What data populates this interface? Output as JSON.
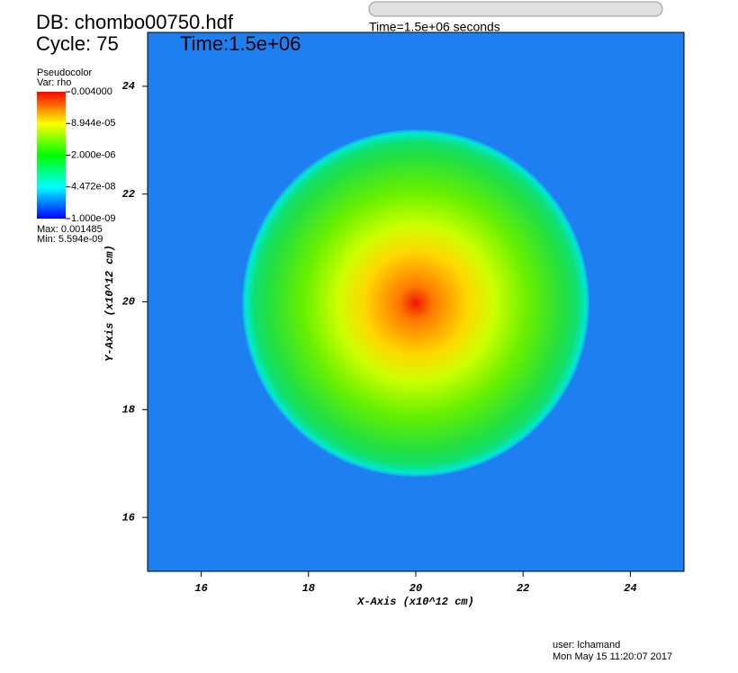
{
  "chart_data": {
    "type": "pseudocolor",
    "database": "DB: chombo00750.hdf",
    "cycle": "Cycle: 75",
    "time": "Time:1.5e+06",
    "title": "Time=1.5e+06 seconds",
    "xlabel": "X-Axis (x10^12 cm)",
    "ylabel": "Y-Axis (x10^12 cm)",
    "xlim": [
      15,
      25
    ],
    "xticks": [
      16,
      18,
      20,
      22,
      24
    ],
    "ylim": [
      15,
      25
    ],
    "yticks": [
      16,
      18,
      20,
      22,
      24
    ],
    "colorbar": {
      "title": "Pseudocolor",
      "variable": "Var: rho",
      "log": true,
      "clim": [
        1e-09,
        0.004
      ],
      "ticks": [
        {
          "value": 0.004,
          "label": "0.004000"
        },
        {
          "value": 8.944e-05,
          "label": "8.944e-05"
        },
        {
          "value": 2e-06,
          "label": "2.000e-06"
        },
        {
          "value": 4.472e-08,
          "label": "4.472e-08"
        },
        {
          "value": 1e-09,
          "label": "1.000e-09"
        }
      ],
      "max_label": "Max: 0.001485",
      "min_label": "Min: 5.594e-09"
    },
    "user": "user: lchamand",
    "date": "Mon May 15 11:20:07 2017"
  }
}
